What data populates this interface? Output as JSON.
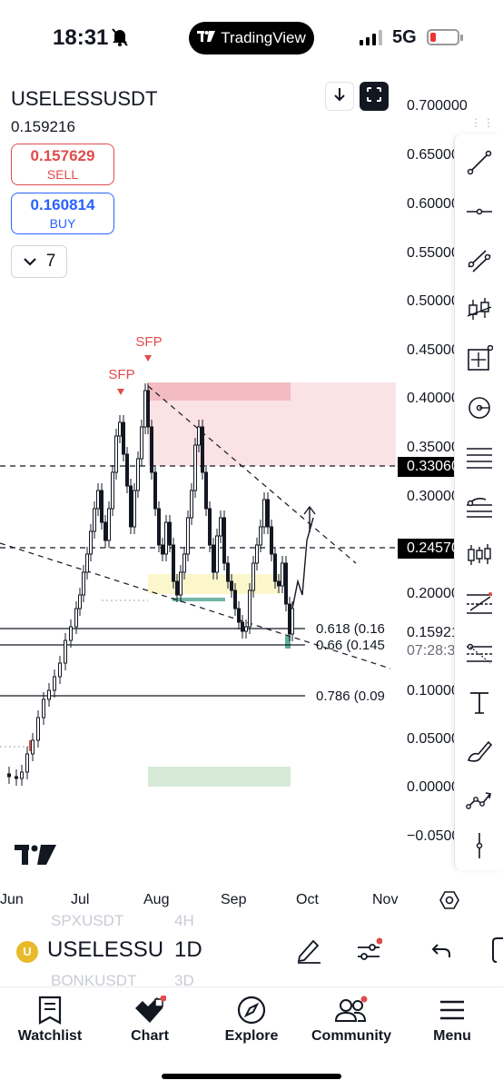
{
  "status_bar": {
    "time": "18:31",
    "app_pill": "TradingView",
    "network": "5G"
  },
  "chart": {
    "symbol": "USELESSUSDT",
    "last_price": "0.159216",
    "sell": {
      "price": "0.157629",
      "label": "SELL"
    },
    "buy": {
      "price": "0.160814",
      "label": "BUY"
    },
    "indicators_count": "7",
    "price_axis": [
      "0.700000",
      "0.650000",
      "0.600000",
      "0.550000",
      "0.500000",
      "0.450000",
      "0.400000",
      "0.350000",
      "0.300000",
      "0.250000",
      "0.200000",
      "0.150000",
      "0.100000",
      "0.050000",
      "0.000000",
      "−0.050000"
    ],
    "price_tags": {
      "upper": "0.330600",
      "lower": "0.245700"
    },
    "current_price_tag": "0.159216",
    "countdown": "07:28:33",
    "time_axis": [
      "Jun",
      "Jul",
      "Aug",
      "Sep",
      "Oct",
      "Nov"
    ],
    "fib_levels": [
      "0.618 (0.16",
      "0.66 (0.145",
      "0.786 (0.09"
    ],
    "sfp_labels": [
      "SFP",
      "SFP"
    ],
    "colors": {
      "up": "#131722",
      "down": "#131722",
      "supply_zone": "#f4c7cb",
      "demand_zone": "#c8e6c9",
      "sell": "#e04b4b",
      "buy": "#2962ff"
    }
  },
  "toolbar": {
    "icons": [
      "trend-line-icon",
      "horizontal-ray-icon",
      "parallel-channel-icon",
      "long-position-icon",
      "measure-icon",
      "circle-icon",
      "fib-retracement-icon",
      "pitchfork-icon",
      "pattern-icon",
      "gann-icon",
      "fib-extension-icon",
      "text-icon",
      "brush-icon",
      "path-icon",
      "vertical-line-icon"
    ]
  },
  "symbol_bar": {
    "prev_symbol": "SPXUSDT",
    "prev_tf": "4H",
    "symbol": "USELESSU",
    "timeframe": "1D",
    "next_symbol": "BONKUSDT",
    "next_tf": "3D"
  },
  "nav": {
    "items": [
      {
        "label": "Watchlist",
        "icon": "watchlist-icon"
      },
      {
        "label": "Chart",
        "icon": "chart-icon"
      },
      {
        "label": "Explore",
        "icon": "compass-icon"
      },
      {
        "label": "Community",
        "icon": "community-icon"
      },
      {
        "label": "Menu",
        "icon": "menu-icon"
      }
    ]
  }
}
